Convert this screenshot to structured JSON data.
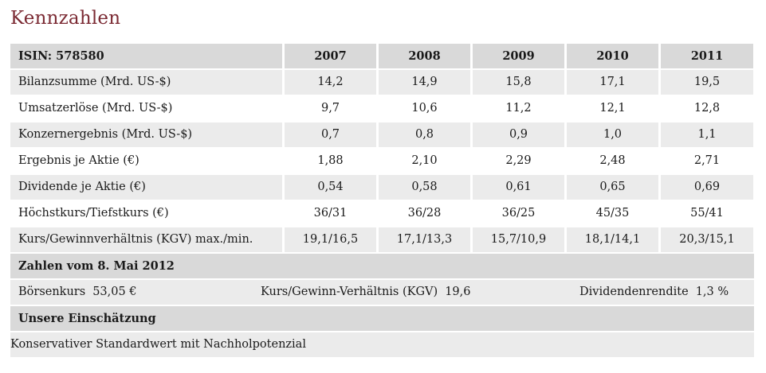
{
  "title": "Kennzahlen",
  "header": {
    "label": "ISIN: 578580",
    "years": [
      "2007",
      "2008",
      "2009",
      "2010",
      "2011"
    ]
  },
  "rows": [
    {
      "label": "Bilanzsumme (Mrd. US-$)",
      "values": [
        "14,2",
        "14,9",
        "15,8",
        "17,1",
        "19,5"
      ]
    },
    {
      "label": "Umsatzerlöse (Mrd. US-$)",
      "values": [
        "9,7",
        "10,6",
        "11,2",
        "12,1",
        "12,8"
      ]
    },
    {
      "label": "Konzernergebnis (Mrd. US-$)",
      "values": [
        "0,7",
        "0,8",
        "0,9",
        "1,0",
        "1,1"
      ]
    },
    {
      "label": "Ergebnis je Aktie (€)",
      "values": [
        "1,88",
        "2,10",
        "2,29",
        "2,48",
        "2,71"
      ]
    },
    {
      "label": "Dividende je Aktie (€)",
      "values": [
        "0,54",
        "0,58",
        "0,61",
        "0,65",
        "0,69"
      ]
    },
    {
      "label": "Höchstkurs/Tiefstkurs (€)",
      "values": [
        "36/31",
        "36/28",
        "36/25",
        "45/35",
        "55/41"
      ]
    },
    {
      "label": "Kurs/Gewinnverhältnis (KGV) max./min.",
      "values": [
        "19,1/16,5",
        "17,1/13,3",
        "15,7/10,9",
        "18,1/14,1",
        "20,3/15,1"
      ]
    }
  ],
  "snapshot": {
    "heading": "Zahlen vom 8. Mai 2012",
    "boersenkurs_label": "Börsenkurs",
    "boersenkurs_value": "53,05 €",
    "kgv_label": "Kurs/Gewinn-Verhältnis (KGV)",
    "kgv_value": "19,6",
    "rendite_label": "Dividendenrendite",
    "rendite_value": "1,3 %"
  },
  "assessment": {
    "heading": "Unsere Einschätzung",
    "text": "Konservativer Standardwert mit Nachholpotenzial"
  },
  "colors": {
    "title": "#7b2a33",
    "header_bg": "#d9d9d9",
    "shade_bg": "#ebebeb"
  }
}
